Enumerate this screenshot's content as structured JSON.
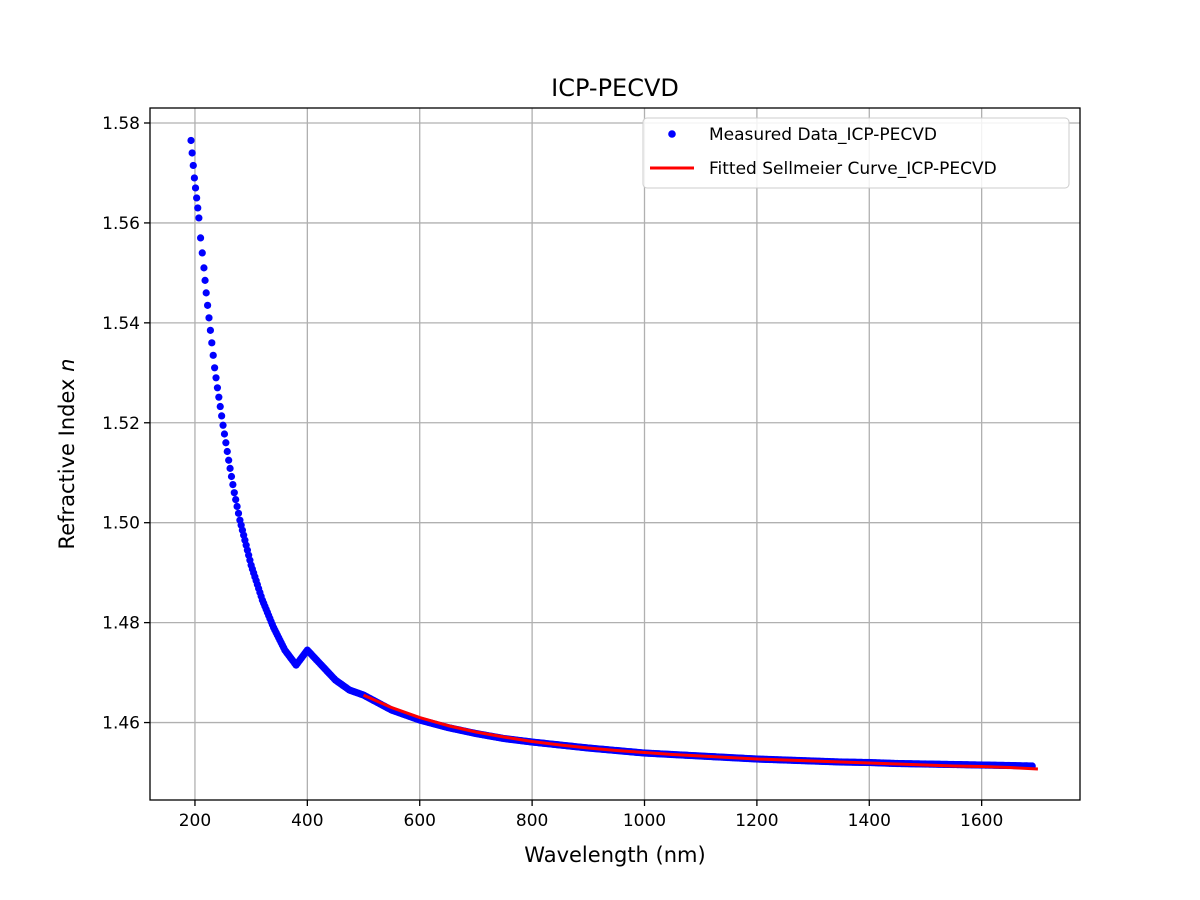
{
  "chart_data": {
    "type": "scatter",
    "title": "ICP-PECVD",
    "xlabel": "Wavelength (nm)",
    "ylabel_prefix": "Refractive Index ",
    "ylabel_var": "n",
    "xlim": [
      120,
      1775
    ],
    "ylim": [
      1.4445,
      1.583
    ],
    "xticks": [
      200,
      400,
      600,
      800,
      1000,
      1200,
      1400,
      1600
    ],
    "yticks": [
      1.46,
      1.48,
      1.5,
      1.52,
      1.54,
      1.56,
      1.58
    ],
    "xtick_labels": [
      "200",
      "400",
      "600",
      "800",
      "1000",
      "1200",
      "1400",
      "1600"
    ],
    "ytick_labels": [
      "1.46",
      "1.48",
      "1.50",
      "1.52",
      "1.54",
      "1.56",
      "1.58"
    ],
    "grid": true,
    "legend_position": "top-right",
    "series": [
      {
        "name": "Measured Data_ICP-PECVD",
        "style": "dots",
        "color": "#0000ff",
        "x": [
          193,
          195,
          197,
          199,
          201,
          203,
          205,
          207,
          210,
          213,
          216,
          220,
          225,
          230,
          235,
          240,
          250,
          260,
          270,
          280,
          300,
          320,
          340,
          360,
          380,
          400,
          425,
          450,
          475,
          500,
          550,
          600,
          650,
          700,
          750,
          800,
          850,
          900,
          950,
          1000,
          1050,
          1100,
          1150,
          1200,
          1250,
          1300,
          1350,
          1400,
          1450,
          1500,
          1550,
          1600,
          1650,
          1690
        ],
        "y": [
          1.5765,
          1.574,
          1.5715,
          1.569,
          1.567,
          1.565,
          1.563,
          1.561,
          1.557,
          1.554,
          1.551,
          1.546,
          1.541,
          1.536,
          1.531,
          1.527,
          1.5195,
          1.5125,
          1.506,
          1.5005,
          1.4915,
          1.4845,
          1.479,
          1.4745,
          1.4715,
          1.4745,
          1.4715,
          1.4685,
          1.4665,
          1.4655,
          1.4625,
          1.4605,
          1.459,
          1.4578,
          1.4568,
          1.4561,
          1.4555,
          1.4549,
          1.4544,
          1.4539,
          1.4536,
          1.4533,
          1.453,
          1.4527,
          1.4525,
          1.4523,
          1.4521,
          1.452,
          1.4518,
          1.4517,
          1.4516,
          1.4515,
          1.4514,
          1.4513
        ]
      },
      {
        "name": "Fitted Sellmeier Curve_ICP-PECVD",
        "style": "line",
        "color": "#ff0000",
        "x": [
          500,
          550,
          600,
          650,
          700,
          750,
          800,
          850,
          900,
          950,
          1000,
          1050,
          1100,
          1150,
          1200,
          1250,
          1300,
          1350,
          1400,
          1450,
          1500,
          1550,
          1600,
          1650,
          1700
        ],
        "y": [
          1.4655,
          1.463,
          1.461,
          1.4594,
          1.4581,
          1.4571,
          1.4562,
          1.4555,
          1.4549,
          1.4544,
          1.454,
          1.4536,
          1.4533,
          1.453,
          1.4527,
          1.4525,
          1.4523,
          1.4521,
          1.4519,
          1.4517,
          1.4515,
          1.4513,
          1.4512,
          1.451,
          1.4507
        ]
      }
    ]
  }
}
